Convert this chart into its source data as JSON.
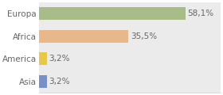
{
  "categories": [
    "Europa",
    "Africa",
    "America",
    "Asia"
  ],
  "values": [
    58.1,
    35.5,
    3.2,
    3.2
  ],
  "bar_colors": [
    "#a8bc8a",
    "#e8b88a",
    "#e8c84a",
    "#7a8ec8"
  ],
  "label_texts": [
    "58,1%",
    "35,5%",
    "3,2%",
    "3,2%"
  ],
  "plot_bg_color": "#ebebeb",
  "fig_bg_color": "#ffffff",
  "grid_color": "#ffffff",
  "text_color": "#666666",
  "xlim": [
    0,
    72
  ],
  "bar_height": 0.55,
  "text_fontsize": 7.5,
  "label_fontsize": 7.5
}
